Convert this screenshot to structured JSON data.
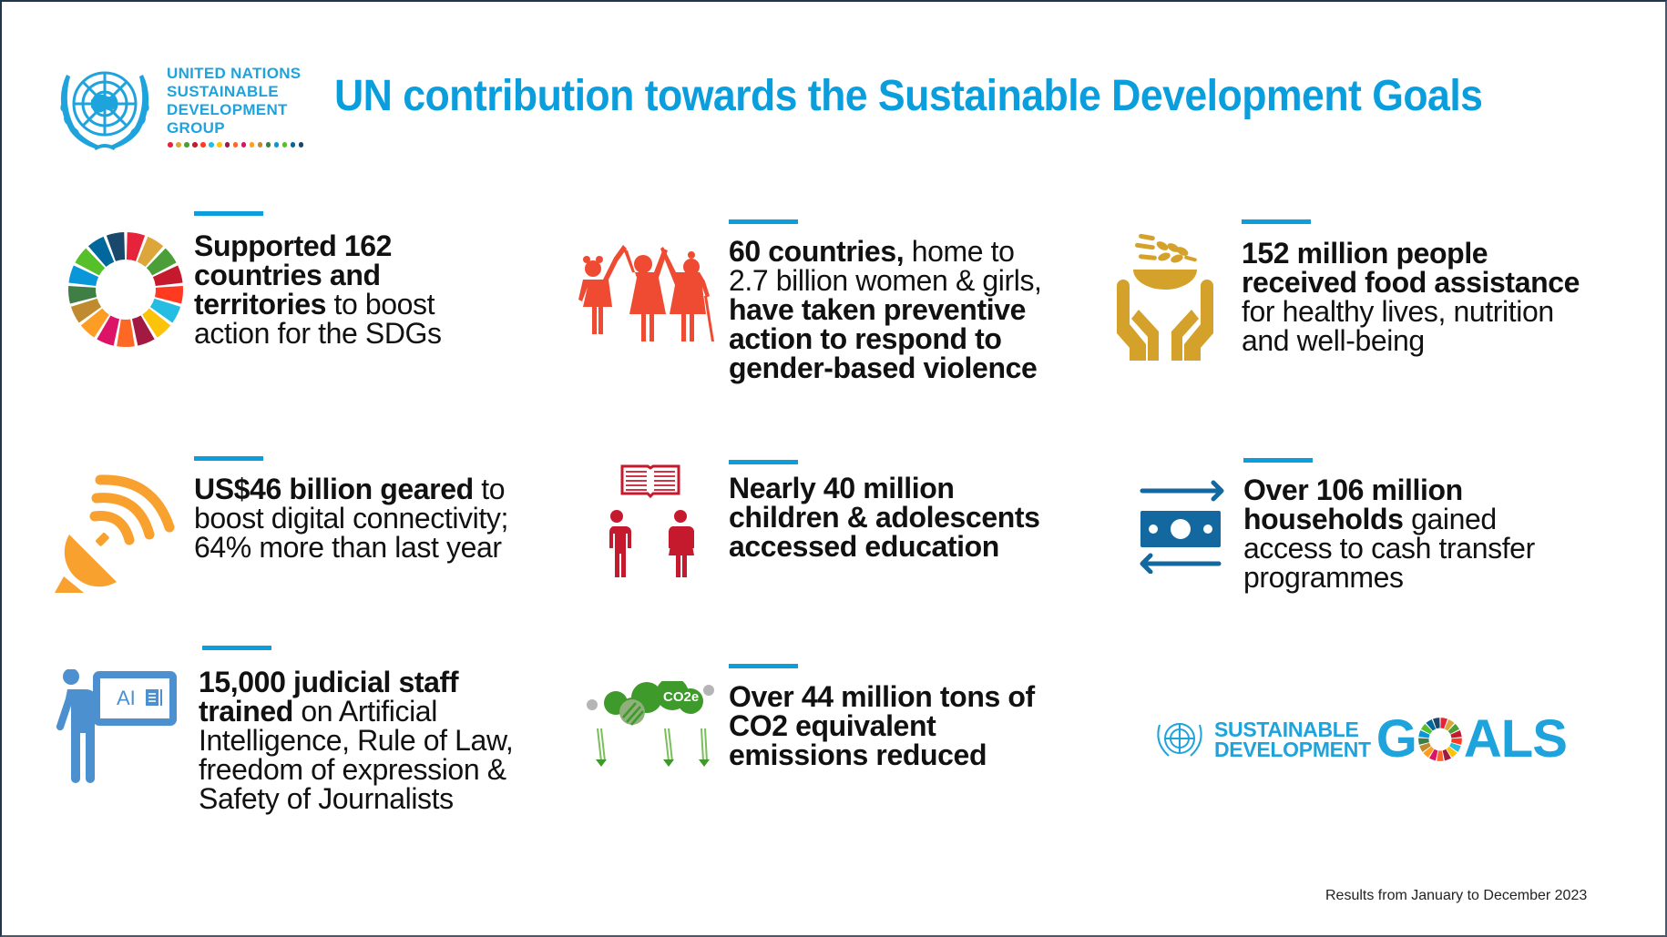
{
  "header": {
    "org_logo_lines": [
      "UNITED NATIONS",
      "SUSTAINABLE",
      "DEVELOPMENT",
      "GROUP"
    ],
    "title": "UN contribution towards the Sustainable Development Goals"
  },
  "colors": {
    "accent_blue": "#0A9EDC",
    "un_blue": "#1FA3DC",
    "sdg_palette": [
      "#E5243B",
      "#DDA63A",
      "#4C9F38",
      "#C5192D",
      "#FF3A21",
      "#26BDE2",
      "#FCC30B",
      "#A21942",
      "#FD6925",
      "#DD1367",
      "#FD9D24",
      "#BF8B2E",
      "#3F7E44",
      "#0A97D9",
      "#56C02B",
      "#00689D",
      "#19486A"
    ],
    "women_icon": "#EF4B32",
    "food_icon": "#D4A22B",
    "digital_icon": "#F9A12E",
    "education_icon": "#C5192D",
    "cash_icon": "#1368A0",
    "training_icon": "#4C90D0",
    "climate_icon": "#3E9A2A"
  },
  "items": [
    {
      "icon": "sdg-wheel-icon",
      "segments": [
        {
          "text": "Supported 162",
          "bold": true
        },
        {
          "text": "countries and",
          "bold": true
        },
        {
          "text": "territories",
          "bold": true
        },
        {
          "text": " to boost",
          "bold": false
        },
        {
          "text": "action for the SDGs",
          "bold": false
        }
      ],
      "lines": [
        [
          {
            "t": "Supported 162",
            "b": true
          }
        ],
        [
          {
            "t": "countries and",
            "b": true
          }
        ],
        [
          {
            "t": "territories",
            "b": true
          },
          {
            "t": " to boost",
            "b": false
          }
        ],
        [
          {
            "t": "action for the SDGs",
            "b": false
          }
        ]
      ]
    },
    {
      "icon": "women-and-girls-icon",
      "lines": [
        [
          {
            "t": "60 countries,",
            "b": true
          },
          {
            "t": " home to",
            "b": false
          }
        ],
        [
          {
            "t": "2.7 billion women & girls,",
            "b": false
          }
        ],
        [
          {
            "t": "have taken preventive",
            "b": true
          }
        ],
        [
          {
            "t": "action to respond to",
            "b": true
          }
        ],
        [
          {
            "t": "gender-based violence",
            "b": true
          }
        ]
      ]
    },
    {
      "icon": "food-assistance-icon",
      "lines": [
        [
          {
            "t": "152 million people",
            "b": true
          }
        ],
        [
          {
            "t": "received food assistance",
            "b": true
          }
        ],
        [
          {
            "t": "for healthy lives, nutrition",
            "b": false
          }
        ],
        [
          {
            "t": "and well-being",
            "b": false
          }
        ]
      ]
    },
    {
      "icon": "satellite-dish-icon",
      "lines": [
        [
          {
            "t": "US$46 billion geared",
            "b": true
          },
          {
            "t": " to",
            "b": false
          }
        ],
        [
          {
            "t": "boost digital connectivity;",
            "b": false
          }
        ],
        [
          {
            "t": "64% more than last year",
            "b": false
          }
        ]
      ]
    },
    {
      "icon": "children-education-icon",
      "lines": [
        [
          {
            "t": "Nearly 40 million",
            "b": true
          }
        ],
        [
          {
            "t": "children & adolescents",
            "b": true
          }
        ],
        [
          {
            "t": "accessed education",
            "b": true
          }
        ]
      ]
    },
    {
      "icon": "cash-transfer-icon",
      "lines": [
        [
          {
            "t": "Over 106 million",
            "b": true
          }
        ],
        [
          {
            "t": "households",
            "b": true
          },
          {
            "t": " gained",
            "b": false
          }
        ],
        [
          {
            "t": "access to cash transfer",
            "b": false
          }
        ],
        [
          {
            "t": "programmes",
            "b": false
          }
        ]
      ]
    },
    {
      "icon": "ai-training-icon",
      "icon_label": "AI",
      "lines": [
        [
          {
            "t": "15,000 judicial staff",
            "b": true
          }
        ],
        [
          {
            "t": "trained",
            "b": true
          },
          {
            "t": " on Artificial",
            "b": false
          }
        ],
        [
          {
            "t": "Intelligence, Rule of Law,",
            "b": false
          }
        ],
        [
          {
            "t": "freedom of expression &",
            "b": false
          }
        ],
        [
          {
            "t": "Safety of Journalists",
            "b": false
          }
        ]
      ]
    },
    {
      "icon": "co2-reduction-icon",
      "icon_label": "CO2e",
      "lines": [
        [
          {
            "t": "Over 44 million tons of",
            "b": true
          }
        ],
        [
          {
            "t": "CO2 equivalent",
            "b": true
          }
        ],
        [
          {
            "t": "emissions reduced",
            "b": true
          }
        ]
      ]
    }
  ],
  "sdg_logo": {
    "line1": "SUSTAINABLE",
    "line2": "DEVELOPMENT",
    "goals_g": "G",
    "goals_rest": "ALS"
  },
  "footer": {
    "note": "Results from January to December 2023"
  }
}
